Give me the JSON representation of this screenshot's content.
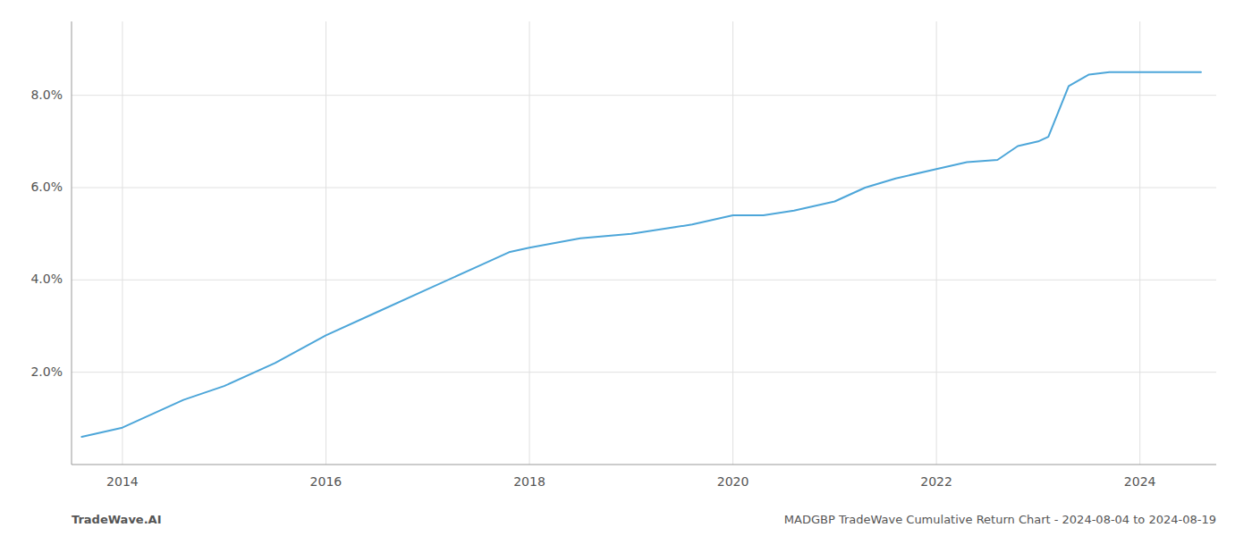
{
  "chart_data": {
    "type": "line",
    "x": [
      2013.6,
      2014.0,
      2014.6,
      2015.0,
      2015.5,
      2016.0,
      2016.5,
      2017.0,
      2017.5,
      2017.8,
      2018.0,
      2018.5,
      2019.0,
      2019.3,
      2019.6,
      2020.0,
      2020.3,
      2020.6,
      2021.0,
      2021.3,
      2021.6,
      2022.0,
      2022.3,
      2022.6,
      2022.8,
      2023.0,
      2023.1,
      2023.3,
      2023.5,
      2023.7,
      2024.0,
      2024.3,
      2024.6
    ],
    "values": [
      0.006,
      0.008,
      0.014,
      0.017,
      0.022,
      0.028,
      0.033,
      0.038,
      0.043,
      0.046,
      0.047,
      0.049,
      0.05,
      0.051,
      0.052,
      0.054,
      0.054,
      0.055,
      0.057,
      0.06,
      0.062,
      0.064,
      0.0655,
      0.066,
      0.069,
      0.07,
      0.071,
      0.082,
      0.0845,
      0.085,
      0.085,
      0.085,
      0.085
    ],
    "color": "#4da6d9",
    "xlim": [
      2013.5,
      2024.75
    ],
    "ylim": [
      0.0,
      0.096
    ],
    "xticks": [
      2014,
      2016,
      2018,
      2020,
      2022,
      2024
    ],
    "yticks": [
      {
        "value": 0.02,
        "label": "2.0%"
      },
      {
        "value": 0.04,
        "label": "4.0%"
      },
      {
        "value": 0.06,
        "label": "6.0%"
      },
      {
        "value": 0.08,
        "label": "8.0%"
      }
    ],
    "grid": true,
    "annotations": [
      "TradeWave.AI",
      "MADGBP TradeWave Cumulative Return Chart - 2024-08-04 to 2024-08-19"
    ]
  }
}
